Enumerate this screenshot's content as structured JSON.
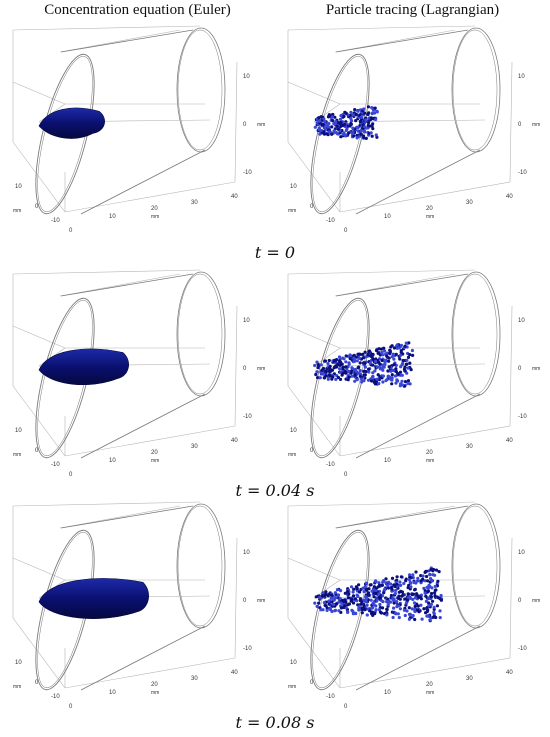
{
  "columns": {
    "left_title": "Concentration equation (Euler)",
    "right_title": "Particle tracing (Lagrangian)"
  },
  "axes": {
    "z_ticks": [
      "10",
      "0",
      "-10"
    ],
    "z_unit": "mm",
    "x_ticks": [
      "0",
      "10",
      "20",
      "30",
      "40"
    ],
    "x_unit": "mm",
    "y_ticks": [
      "10",
      "0",
      "-10"
    ],
    "y_unit": "mm",
    "y_origin_tick": "0"
  },
  "rows": [
    {
      "time_label": "t = 0",
      "plume_extent": 0.3,
      "particle_extent": 0.3
    },
    {
      "time_label": "t = 0.04 s",
      "plume_extent": 0.42,
      "particle_extent": 0.48
    },
    {
      "time_label": "t = 0.08 s",
      "plume_extent": 0.52,
      "particle_extent": 0.62
    }
  ],
  "colors": {
    "plume_dark": "#0a1070",
    "plume_light": "#1d2aa8",
    "particle_dark": "#0b0f7a",
    "particle_light": "#3a47d6",
    "frame": "#7a7a7a"
  }
}
